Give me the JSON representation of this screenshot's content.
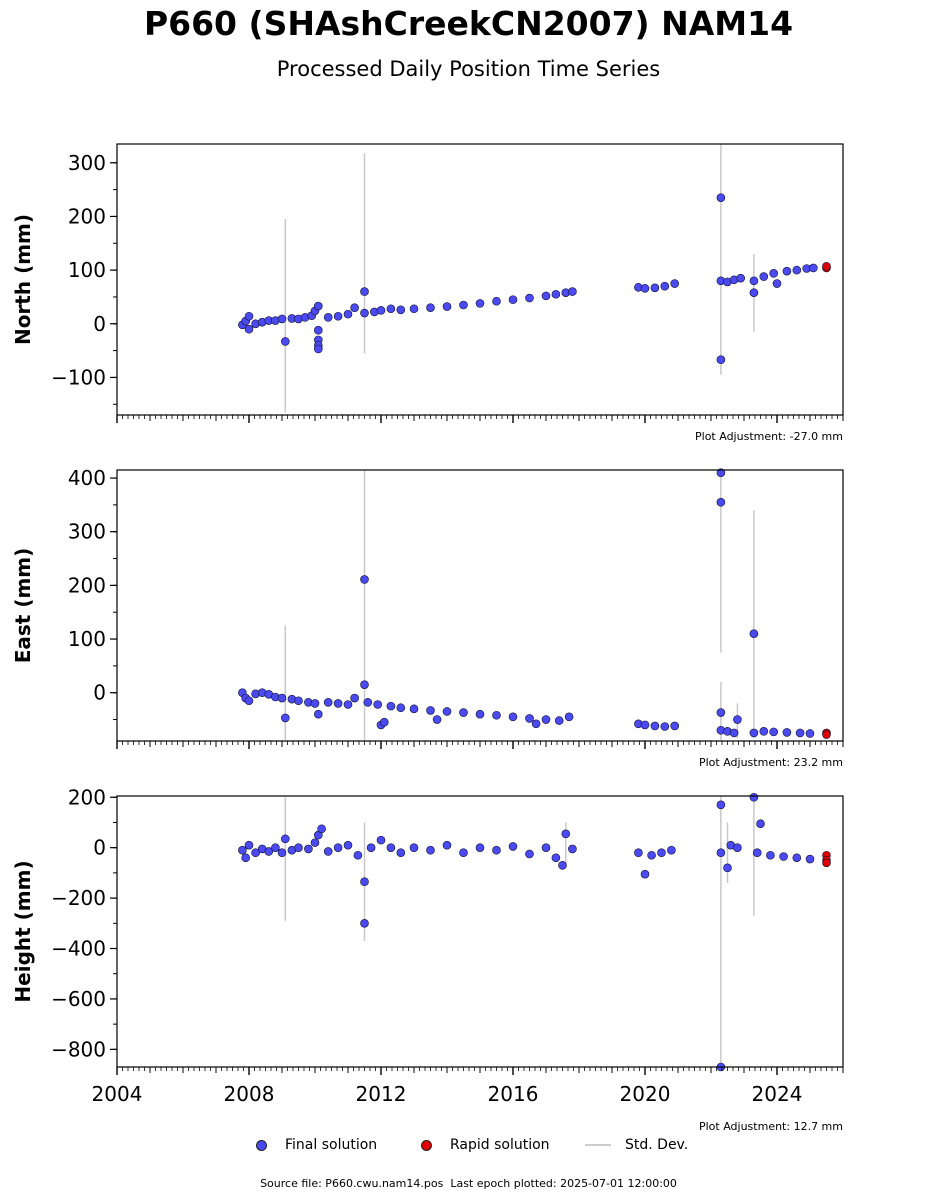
{
  "title": "P660 (SHAshCreekCN2007) NAM14",
  "subtitle": "Processed Daily Position Time Series",
  "footer": {
    "source_label": "Source file: P660.cwu.nam14.pos",
    "last_epoch_label": "Last epoch plotted: 2025-07-01 12:00:00"
  },
  "legend": {
    "final": "Final solution",
    "rapid": "Rapid solution",
    "stddev": "Std. Dev."
  },
  "colors": {
    "final": "#4a4af0",
    "rapid": "#e00000",
    "stddev": "#c8c8c8",
    "outline": "#111133"
  },
  "chart_data": [
    {
      "type": "scatter",
      "ylabel": "North (mm)",
      "adjustment_label": "Plot Adjustment: -27.0 mm",
      "xlim": [
        2004,
        2026
      ],
      "ylim": [
        -170,
        335
      ],
      "x_ticks": [
        "2004",
        "2008",
        "2012",
        "2016",
        "2020",
        "2024"
      ],
      "y_ticks": [
        -100,
        0,
        100,
        200,
        300
      ],
      "series": [
        {
          "name": "Final solution",
          "points": [
            [
              2007.8,
              -2
            ],
            [
              2007.9,
              5
            ],
            [
              2008.0,
              -10
            ],
            [
              2008.0,
              14
            ],
            [
              2008.2,
              0
            ],
            [
              2008.4,
              3
            ],
            [
              2008.6,
              6
            ],
            [
              2008.8,
              6
            ],
            [
              2009.0,
              9
            ],
            [
              2009.1,
              -33
            ],
            [
              2009.3,
              10
            ],
            [
              2009.5,
              9
            ],
            [
              2009.7,
              12
            ],
            [
              2009.9,
              15
            ],
            [
              2010.0,
              24
            ],
            [
              2010.1,
              33
            ],
            [
              2010.1,
              -12
            ],
            [
              2010.1,
              -30
            ],
            [
              2010.1,
              -40
            ],
            [
              2010.1,
              -47
            ],
            [
              2010.4,
              12
            ],
            [
              2010.7,
              14
            ],
            [
              2011.0,
              18
            ],
            [
              2011.2,
              30
            ],
            [
              2011.5,
              20
            ],
            [
              2011.5,
              60
            ],
            [
              2011.8,
              22
            ],
            [
              2012.0,
              25
            ],
            [
              2012.3,
              28
            ],
            [
              2012.6,
              26
            ],
            [
              2013.0,
              28
            ],
            [
              2013.5,
              30
            ],
            [
              2014.0,
              32
            ],
            [
              2014.5,
              35
            ],
            [
              2015.0,
              38
            ],
            [
              2015.5,
              42
            ],
            [
              2016.0,
              45
            ],
            [
              2016.5,
              48
            ],
            [
              2017.0,
              52
            ],
            [
              2017.3,
              55
            ],
            [
              2017.6,
              58
            ],
            [
              2017.8,
              60
            ],
            [
              2019.8,
              68
            ],
            [
              2020.0,
              66
            ],
            [
              2020.3,
              67
            ],
            [
              2020.6,
              70
            ],
            [
              2020.9,
              75
            ],
            [
              2022.3,
              235
            ],
            [
              2022.3,
              -67
            ],
            [
              2022.3,
              80
            ],
            [
              2022.5,
              78
            ],
            [
              2022.7,
              82
            ],
            [
              2022.9,
              85
            ],
            [
              2023.3,
              58
            ],
            [
              2023.3,
              80
            ],
            [
              2023.6,
              88
            ],
            [
              2023.9,
              94
            ],
            [
              2024.0,
              75
            ],
            [
              2024.3,
              98
            ],
            [
              2024.6,
              100
            ],
            [
              2024.9,
              103
            ],
            [
              2025.1,
              104
            ]
          ]
        },
        {
          "name": "Rapid solution",
          "points": [
            [
              2025.5,
              104
            ],
            [
              2025.5,
              107
            ]
          ]
        }
      ],
      "stddev_bars": [
        [
          2009.1,
          -165,
          195
        ],
        [
          2011.5,
          -55,
          318
        ],
        [
          2022.3,
          -95,
          335
        ],
        [
          2023.3,
          -15,
          130
        ]
      ]
    },
    {
      "type": "scatter",
      "ylabel": "East (mm)",
      "adjustment_label": "Plot Adjustment: 23.2 mm",
      "xlim": [
        2004,
        2026
      ],
      "ylim": [
        -90,
        415
      ],
      "x_ticks": [
        "2004",
        "2008",
        "2012",
        "2016",
        "2020",
        "2024"
      ],
      "y_ticks": [
        0,
        100,
        200,
        300,
        400
      ],
      "series": [
        {
          "name": "Final solution",
          "points": [
            [
              2007.8,
              0
            ],
            [
              2007.9,
              -10
            ],
            [
              2008.0,
              -15
            ],
            [
              2008.2,
              -2
            ],
            [
              2008.4,
              0
            ],
            [
              2008.6,
              -3
            ],
            [
              2008.8,
              -8
            ],
            [
              2009.0,
              -10
            ],
            [
              2009.1,
              -47
            ],
            [
              2009.3,
              -12
            ],
            [
              2009.5,
              -15
            ],
            [
              2009.8,
              -18
            ],
            [
              2010.0,
              -20
            ],
            [
              2010.1,
              -40
            ],
            [
              2010.4,
              -18
            ],
            [
              2010.7,
              -20
            ],
            [
              2011.0,
              -22
            ],
            [
              2011.2,
              -10
            ],
            [
              2011.5,
              211
            ],
            [
              2011.5,
              15
            ],
            [
              2011.6,
              -18
            ],
            [
              2011.9,
              -22
            ],
            [
              2012.0,
              -60
            ],
            [
              2012.1,
              -55
            ],
            [
              2012.3,
              -25
            ],
            [
              2012.6,
              -28
            ],
            [
              2013.0,
              -30
            ],
            [
              2013.5,
              -33
            ],
            [
              2013.7,
              -50
            ],
            [
              2014.0,
              -35
            ],
            [
              2014.5,
              -37
            ],
            [
              2015.0,
              -40
            ],
            [
              2015.5,
              -42
            ],
            [
              2016.0,
              -45
            ],
            [
              2016.5,
              -48
            ],
            [
              2016.7,
              -58
            ],
            [
              2017.0,
              -50
            ],
            [
              2017.4,
              -52
            ],
            [
              2017.7,
              -45
            ],
            [
              2019.8,
              -58
            ],
            [
              2020.0,
              -60
            ],
            [
              2020.3,
              -62
            ],
            [
              2020.6,
              -63
            ],
            [
              2020.9,
              -62
            ],
            [
              2022.3,
              410
            ],
            [
              2022.3,
              355
            ],
            [
              2022.3,
              -37
            ],
            [
              2022.3,
              -70
            ],
            [
              2022.5,
              -72
            ],
            [
              2022.7,
              -75
            ],
            [
              2022.8,
              -50
            ],
            [
              2023.3,
              110
            ],
            [
              2023.3,
              -75
            ],
            [
              2023.6,
              -72
            ],
            [
              2023.9,
              -73
            ],
            [
              2024.3,
              -74
            ],
            [
              2024.7,
              -75
            ],
            [
              2025.0,
              -76
            ]
          ]
        },
        {
          "name": "Rapid solution",
          "points": [
            [
              2025.5,
              -75
            ],
            [
              2025.5,
              -78
            ]
          ]
        }
      ],
      "stddev_bars": [
        [
          2009.1,
          -88,
          125
        ],
        [
          2011.5,
          -88,
          415
        ],
        [
          2022.3,
          75,
          415
        ],
        [
          2022.3,
          -88,
          20
        ],
        [
          2022.8,
          -85,
          -20
        ],
        [
          2023.3,
          -85,
          340
        ]
      ]
    },
    {
      "type": "scatter",
      "ylabel": "Height (mm)",
      "adjustment_label": "Plot Adjustment: 12.7 mm",
      "xlim": [
        2004,
        2026
      ],
      "ylim": [
        -870,
        205
      ],
      "x_ticks": [
        "2004",
        "2008",
        "2012",
        "2016",
        "2020",
        "2024"
      ],
      "y_ticks": [
        -800,
        -600,
        -400,
        -200,
        0,
        200
      ],
      "series": [
        {
          "name": "Final solution",
          "points": [
            [
              2007.8,
              -10
            ],
            [
              2007.9,
              -40
            ],
            [
              2008.0,
              10
            ],
            [
              2008.2,
              -20
            ],
            [
              2008.4,
              -5
            ],
            [
              2008.6,
              -15
            ],
            [
              2008.8,
              0
            ],
            [
              2009.0,
              -20
            ],
            [
              2009.1,
              35
            ],
            [
              2009.3,
              -10
            ],
            [
              2009.5,
              0
            ],
            [
              2009.8,
              -5
            ],
            [
              2010.0,
              20
            ],
            [
              2010.1,
              50
            ],
            [
              2010.2,
              75
            ],
            [
              2010.4,
              -15
            ],
            [
              2010.7,
              0
            ],
            [
              2011.0,
              10
            ],
            [
              2011.3,
              -30
            ],
            [
              2011.5,
              -135
            ],
            [
              2011.5,
              -300
            ],
            [
              2011.7,
              0
            ],
            [
              2012.0,
              30
            ],
            [
              2012.3,
              0
            ],
            [
              2012.6,
              -20
            ],
            [
              2013.0,
              0
            ],
            [
              2013.5,
              -10
            ],
            [
              2014.0,
              10
            ],
            [
              2014.5,
              -20
            ],
            [
              2015.0,
              0
            ],
            [
              2015.5,
              -10
            ],
            [
              2016.0,
              5
            ],
            [
              2016.5,
              -25
            ],
            [
              2017.0,
              0
            ],
            [
              2017.3,
              -40
            ],
            [
              2017.5,
              -70
            ],
            [
              2017.6,
              55
            ],
            [
              2017.8,
              -5
            ],
            [
              2019.8,
              -20
            ],
            [
              2020.0,
              -105
            ],
            [
              2020.2,
              -30
            ],
            [
              2020.5,
              -20
            ],
            [
              2020.8,
              -10
            ],
            [
              2022.3,
              170
            ],
            [
              2022.3,
              -870
            ],
            [
              2022.3,
              -20
            ],
            [
              2022.5,
              -80
            ],
            [
              2022.6,
              10
            ],
            [
              2022.8,
              0
            ],
            [
              2023.3,
              200
            ],
            [
              2023.4,
              -20
            ],
            [
              2023.5,
              95
            ],
            [
              2023.8,
              -30
            ],
            [
              2024.2,
              -35
            ],
            [
              2024.6,
              -40
            ],
            [
              2025.0,
              -45
            ]
          ]
        },
        {
          "name": "Rapid solution",
          "points": [
            [
              2025.5,
              -30
            ],
            [
              2025.5,
              -50
            ],
            [
              2025.5,
              -60
            ]
          ]
        }
      ],
      "stddev_bars": [
        [
          2009.1,
          -290,
          200
        ],
        [
          2011.5,
          -370,
          100
        ],
        [
          2017.6,
          -80,
          100
        ],
        [
          2022.3,
          -860,
          205
        ],
        [
          2022.5,
          -140,
          100
        ],
        [
          2023.3,
          -270,
          200
        ]
      ]
    }
  ]
}
